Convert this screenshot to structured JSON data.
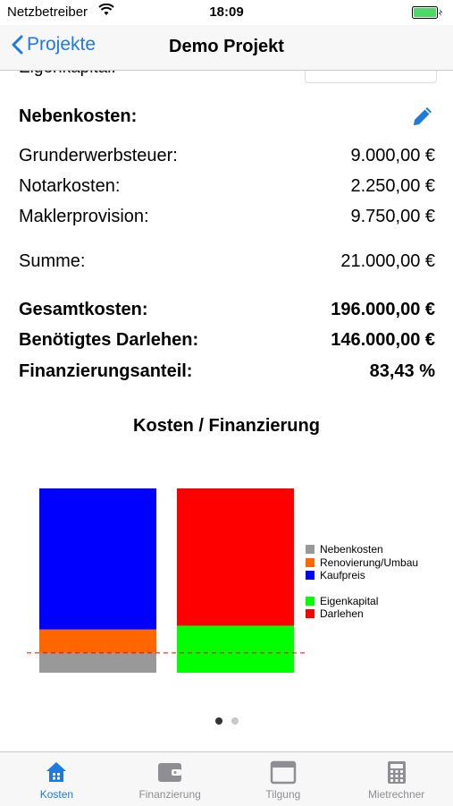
{
  "status": {
    "carrier": "Netzbetreiber",
    "time": "18:09"
  },
  "nav": {
    "back_label": "Projekte",
    "title": "Demo Projekt"
  },
  "cutoff_label": "Eigenkapital:",
  "nebenkosten": {
    "heading": "Nebenkosten:",
    "items": [
      {
        "label": "Grunderwerbsteuer:",
        "value": "9.000,00 €"
      },
      {
        "label": "Notarkosten:",
        "value": "2.250,00 €"
      },
      {
        "label": "Maklerprovision:",
        "value": "9.750,00 €"
      }
    ],
    "sum_label": "Summe:",
    "sum_value": "21.000,00 €"
  },
  "totals": [
    {
      "label": "Gesamtkosten:",
      "value": "196.000,00 €"
    },
    {
      "label": "Benötigtes Darlehen:",
      "value": "146.000,00 €"
    },
    {
      "label": "Finanzierungsanteil:",
      "value": "83,43 %"
    }
  ],
  "chart_data": {
    "type": "bar",
    "title": "Kosten / Finanzierung",
    "stacked": true,
    "bars": [
      {
        "segments": [
          {
            "name": "Nebenkosten",
            "value": 21000,
            "color": "#999999"
          },
          {
            "name": "Renovierung/Umbau",
            "value": 25000,
            "color": "#ff6600"
          },
          {
            "name": "Kaufpreis",
            "value": 150000,
            "color": "#0000ff"
          }
        ]
      },
      {
        "segments": [
          {
            "name": "Eigenkapital",
            "value": 50000,
            "color": "#00ff00"
          },
          {
            "name": "Darlehen",
            "value": 146000,
            "color": "#ff0000"
          }
        ]
      }
    ],
    "reference_line": {
      "value": 21000,
      "color": "#ff0000",
      "style": "dashed"
    },
    "legend": [
      {
        "name": "Nebenkosten",
        "color": "#999999"
      },
      {
        "name": "Renovierung/Umbau",
        "color": "#ff6600"
      },
      {
        "name": "Kaufpreis",
        "color": "#0000ff"
      },
      {
        "name": "Eigenkapital",
        "color": "#00ff00"
      },
      {
        "name": "Darlehen",
        "color": "#ff0000"
      }
    ],
    "legend_position": "right"
  },
  "pager": {
    "pages": 2,
    "current": 1
  },
  "tabs": [
    {
      "label": "Kosten",
      "icon": "home-icon",
      "active": true
    },
    {
      "label": "Finanzierung",
      "icon": "wallet-icon",
      "active": false
    },
    {
      "label": "Tilgung",
      "icon": "calendar-icon",
      "active": false
    },
    {
      "label": "Mietrechner",
      "icon": "calculator-icon",
      "active": false
    }
  ],
  "colors": {
    "accent": "#1f7ae0"
  }
}
